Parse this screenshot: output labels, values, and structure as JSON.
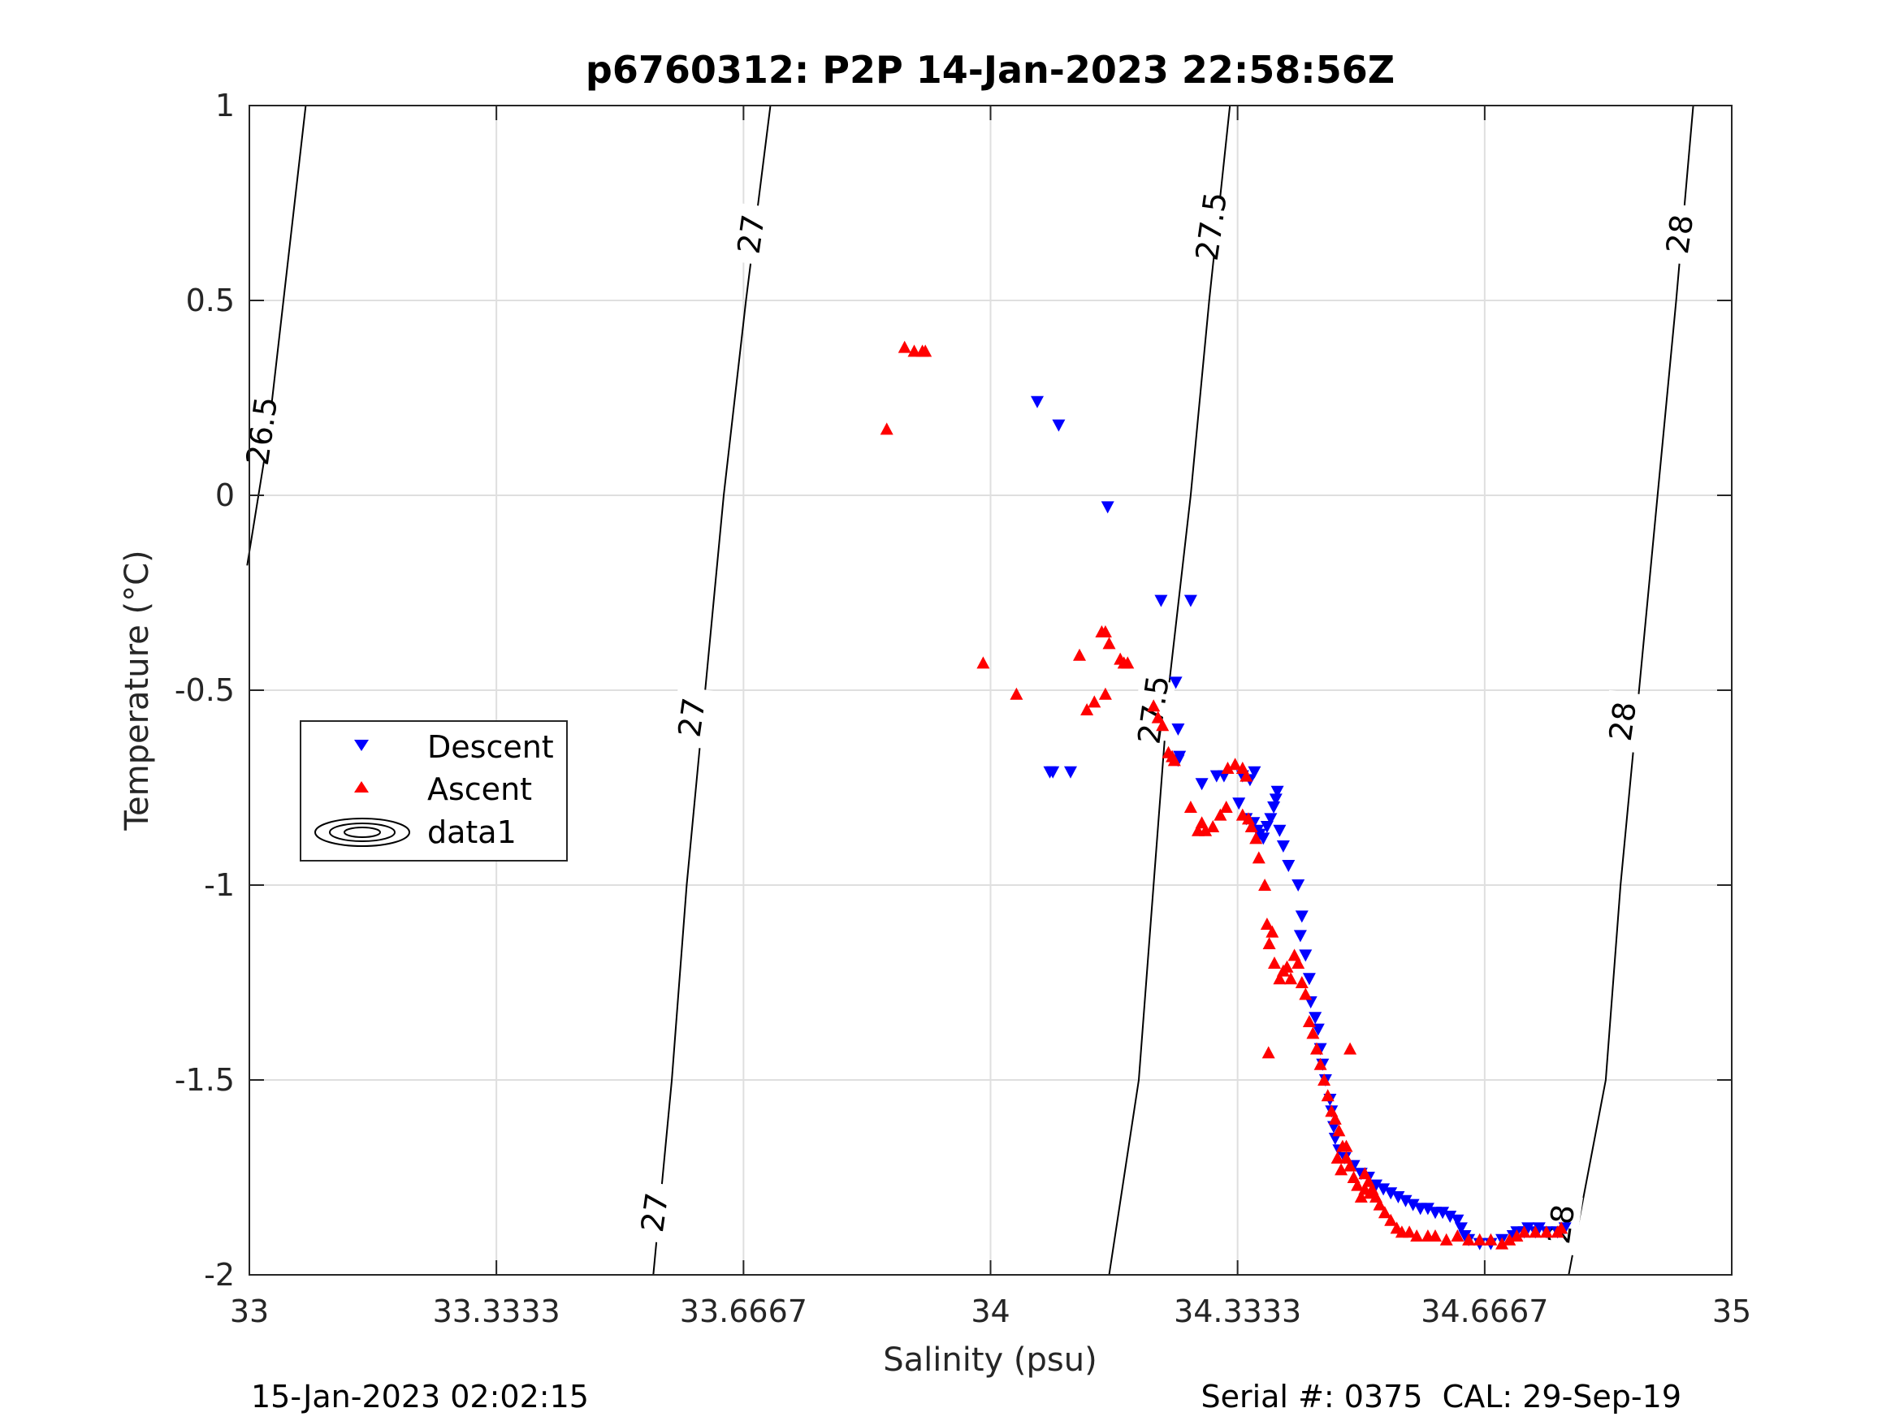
{
  "chart_data": {
    "type": "scatter",
    "title": "p6760312: P2P 14-Jan-2023 22:58:56Z",
    "xlabel": "Salinity (psu)",
    "ylabel": "Temperature (°C)",
    "xlim": [
      33,
      35
    ],
    "ylim": [
      -2,
      1
    ],
    "x_ticks": [
      "33",
      "33.3333",
      "33.6667",
      "34",
      "34.3333",
      "34.6667",
      "35"
    ],
    "x_tick_values": [
      33,
      33.3333,
      33.6667,
      34,
      34.3333,
      34.6667,
      35
    ],
    "y_ticks": [
      "-2",
      "-1.5",
      "-1",
      "-0.5",
      "0",
      "0.5",
      "1"
    ],
    "y_tick_values": [
      -2,
      -1.5,
      -1,
      -0.5,
      0,
      0.5,
      1
    ],
    "grid": true,
    "legend_position": "middle-left",
    "footer_left": "15-Jan-2023 02:02:15",
    "footer_right": "Serial #: 0375  CAL: 29-Sep-19",
    "density_contours": [
      {
        "label": "26.5",
        "points": [
          [
            32.997,
            -0.18
          ],
          [
            33.025,
            0.15
          ],
          [
            33.076,
            1.0
          ]
        ],
        "label_at": [
          33.017,
          0.165
        ]
      },
      {
        "label": "27",
        "points": [
          [
            33.545,
            -2.0
          ],
          [
            33.57,
            -1.5
          ],
          [
            33.59,
            -1.0
          ],
          [
            33.615,
            -0.5
          ],
          [
            33.64,
            0.0
          ],
          [
            33.67,
            0.5
          ],
          [
            33.703,
            1.0
          ]
        ],
        "label_positions": [
          [
            33.547,
            -1.84
          ],
          [
            33.597,
            -0.57
          ],
          [
            33.677,
            0.67
          ]
        ]
      },
      {
        "label": "27.5",
        "points": [
          [
            34.16,
            -2.0
          ],
          [
            34.2,
            -1.5
          ],
          [
            34.22,
            -1.0
          ],
          [
            34.24,
            -0.5
          ],
          [
            34.27,
            0.0
          ],
          [
            34.295,
            0.5
          ],
          [
            34.323,
            1.0
          ]
        ],
        "label_positions": [
          [
            34.22,
            -0.55
          ],
          [
            34.298,
            0.69
          ]
        ]
      },
      {
        "label": "28",
        "points": [
          [
            34.78,
            -2.0
          ],
          [
            34.83,
            -1.5
          ],
          [
            34.85,
            -1.0
          ],
          [
            34.875,
            -0.5
          ],
          [
            34.9,
            0.0
          ],
          [
            34.925,
            0.5
          ],
          [
            34.948,
            1.0
          ]
        ],
        "label_positions": [
          [
            34.77,
            -1.87
          ],
          [
            34.853,
            -0.58
          ],
          [
            34.93,
            0.67
          ]
        ]
      }
    ],
    "series": [
      {
        "name": "Descent",
        "color": "#0000ff",
        "marker": "triangle-down",
        "points": [
          [
            34.063,
            0.24
          ],
          [
            34.092,
            0.18
          ],
          [
            34.158,
            -0.03
          ],
          [
            34.23,
            -0.27
          ],
          [
            34.27,
            -0.27
          ],
          [
            34.25,
            -0.48
          ],
          [
            34.253,
            -0.6
          ],
          [
            34.255,
            -0.67
          ],
          [
            34.253,
            -0.68
          ],
          [
            34.08,
            -0.71
          ],
          [
            34.084,
            -0.71
          ],
          [
            34.108,
            -0.71
          ],
          [
            34.285,
            -0.74
          ],
          [
            34.305,
            -0.72
          ],
          [
            34.315,
            -0.72
          ],
          [
            34.356,
            -0.71
          ],
          [
            34.34,
            -0.72
          ],
          [
            34.35,
            -0.73
          ],
          [
            34.335,
            -0.79
          ],
          [
            34.345,
            -0.83
          ],
          [
            34.355,
            -0.84
          ],
          [
            34.36,
            -0.86
          ],
          [
            34.363,
            -0.87
          ],
          [
            34.368,
            -0.88
          ],
          [
            34.373,
            -0.85
          ],
          [
            34.378,
            -0.83
          ],
          [
            34.382,
            -0.8
          ],
          [
            34.385,
            -0.78
          ],
          [
            34.387,
            -0.76
          ],
          [
            34.39,
            -0.86
          ],
          [
            34.395,
            -0.9
          ],
          [
            34.402,
            -0.95
          ],
          [
            34.415,
            -1.0
          ],
          [
            34.42,
            -1.08
          ],
          [
            34.418,
            -1.13
          ],
          [
            34.425,
            -1.18
          ],
          [
            34.43,
            -1.24
          ],
          [
            34.432,
            -1.3
          ],
          [
            34.438,
            -1.34
          ],
          [
            34.442,
            -1.37
          ],
          [
            34.445,
            -1.42
          ],
          [
            34.448,
            -1.46
          ],
          [
            34.452,
            -1.5
          ],
          [
            34.458,
            -1.55
          ],
          [
            34.46,
            -1.58
          ],
          [
            34.463,
            -1.62
          ],
          [
            34.465,
            -1.65
          ],
          [
            34.47,
            -1.68
          ],
          [
            34.478,
            -1.7
          ],
          [
            34.49,
            -1.72
          ],
          [
            34.5,
            -1.74
          ],
          [
            34.51,
            -1.75
          ],
          [
            34.52,
            -1.77
          ],
          [
            34.53,
            -1.78
          ],
          [
            34.54,
            -1.79
          ],
          [
            34.55,
            -1.8
          ],
          [
            34.56,
            -1.81
          ],
          [
            34.57,
            -1.82
          ],
          [
            34.58,
            -1.83
          ],
          [
            34.59,
            -1.83
          ],
          [
            34.6,
            -1.84
          ],
          [
            34.61,
            -1.84
          ],
          [
            34.62,
            -1.85
          ],
          [
            34.63,
            -1.86
          ],
          [
            34.635,
            -1.88
          ],
          [
            34.64,
            -1.9
          ],
          [
            34.645,
            -1.91
          ],
          [
            34.66,
            -1.92
          ],
          [
            34.675,
            -1.92
          ],
          [
            34.69,
            -1.91
          ],
          [
            34.705,
            -1.9
          ],
          [
            34.72,
            -1.89
          ],
          [
            34.735,
            -1.89
          ],
          [
            34.75,
            -1.89
          ],
          [
            34.765,
            -1.89
          ],
          [
            34.775,
            -1.88
          ],
          [
            34.74,
            -1.88
          ],
          [
            34.725,
            -1.88
          ],
          [
            34.71,
            -1.89
          ]
        ]
      },
      {
        "name": "Ascent",
        "color": "#ff0000",
        "marker": "triangle-up",
        "points": [
          [
            33.884,
            0.38
          ],
          [
            33.897,
            0.37
          ],
          [
            33.908,
            0.37
          ],
          [
            33.912,
            0.37
          ],
          [
            33.86,
            0.17
          ],
          [
            33.99,
            -0.43
          ],
          [
            34.035,
            -0.51
          ],
          [
            34.12,
            -0.41
          ],
          [
            34.15,
            -0.35
          ],
          [
            34.155,
            -0.35
          ],
          [
            34.16,
            -0.38
          ],
          [
            34.175,
            -0.42
          ],
          [
            34.18,
            -0.43
          ],
          [
            34.185,
            -0.43
          ],
          [
            34.13,
            -0.55
          ],
          [
            34.14,
            -0.53
          ],
          [
            34.155,
            -0.51
          ],
          [
            34.22,
            -0.54
          ],
          [
            34.226,
            -0.57
          ],
          [
            34.232,
            -0.59
          ],
          [
            34.24,
            -0.66
          ],
          [
            34.245,
            -0.67
          ],
          [
            34.248,
            -0.68
          ],
          [
            34.29,
            -0.86
          ],
          [
            34.3,
            -0.85
          ],
          [
            34.31,
            -0.82
          ],
          [
            34.318,
            -0.8
          ],
          [
            34.27,
            -0.8
          ],
          [
            34.28,
            -0.86
          ],
          [
            34.285,
            -0.84
          ],
          [
            34.32,
            -0.7
          ],
          [
            34.33,
            -0.69
          ],
          [
            34.34,
            -0.7
          ],
          [
            34.345,
            -0.72
          ],
          [
            34.34,
            -0.82
          ],
          [
            34.348,
            -0.83
          ],
          [
            34.352,
            -0.85
          ],
          [
            34.358,
            -0.88
          ],
          [
            34.362,
            -0.93
          ],
          [
            34.37,
            -1.0
          ],
          [
            34.373,
            -1.1
          ],
          [
            34.376,
            -1.15
          ],
          [
            34.38,
            -1.12
          ],
          [
            34.383,
            -1.2
          ],
          [
            34.39,
            -1.24
          ],
          [
            34.395,
            -1.22
          ],
          [
            34.4,
            -1.21
          ],
          [
            34.405,
            -1.24
          ],
          [
            34.41,
            -1.18
          ],
          [
            34.415,
            -1.2
          ],
          [
            34.42,
            -1.25
          ],
          [
            34.425,
            -1.28
          ],
          [
            34.375,
            -1.43
          ],
          [
            34.43,
            -1.35
          ],
          [
            34.435,
            -1.38
          ],
          [
            34.44,
            -1.42
          ],
          [
            34.445,
            -1.46
          ],
          [
            34.45,
            -1.5
          ],
          [
            34.455,
            -1.54
          ],
          [
            34.46,
            -1.58
          ],
          [
            34.465,
            -1.6
          ],
          [
            34.47,
            -1.63
          ],
          [
            34.475,
            -1.67
          ],
          [
            34.48,
            -1.7
          ],
          [
            34.485,
            -1.72
          ],
          [
            34.49,
            -1.75
          ],
          [
            34.495,
            -1.77
          ],
          [
            34.5,
            -1.8
          ],
          [
            34.505,
            -1.78
          ],
          [
            34.51,
            -1.76
          ],
          [
            34.515,
            -1.78
          ],
          [
            34.52,
            -1.8
          ],
          [
            34.525,
            -1.82
          ],
          [
            34.532,
            -1.84
          ],
          [
            34.54,
            -1.86
          ],
          [
            34.548,
            -1.88
          ],
          [
            34.555,
            -1.89
          ],
          [
            34.565,
            -1.89
          ],
          [
            34.575,
            -1.9
          ],
          [
            34.59,
            -1.9
          ],
          [
            34.6,
            -1.9
          ],
          [
            34.615,
            -1.91
          ],
          [
            34.63,
            -1.9
          ],
          [
            34.645,
            -1.91
          ],
          [
            34.66,
            -1.91
          ],
          [
            34.675,
            -1.91
          ],
          [
            34.69,
            -1.92
          ],
          [
            34.7,
            -1.91
          ],
          [
            34.71,
            -1.9
          ],
          [
            34.72,
            -1.89
          ],
          [
            34.735,
            -1.89
          ],
          [
            34.75,
            -1.89
          ],
          [
            34.765,
            -1.89
          ],
          [
            34.77,
            -1.88
          ],
          [
            34.485,
            -1.42
          ],
          [
            34.48,
            -1.67
          ],
          [
            34.473,
            -1.73
          ],
          [
            34.468,
            -1.7
          ],
          [
            34.505,
            -1.74
          ],
          [
            34.512,
            -1.79
          ]
        ]
      }
    ],
    "legend": [
      {
        "label": "Descent",
        "key": "descent"
      },
      {
        "label": "Ascent",
        "key": "ascent"
      },
      {
        "label": "data1",
        "key": "data1"
      }
    ]
  }
}
